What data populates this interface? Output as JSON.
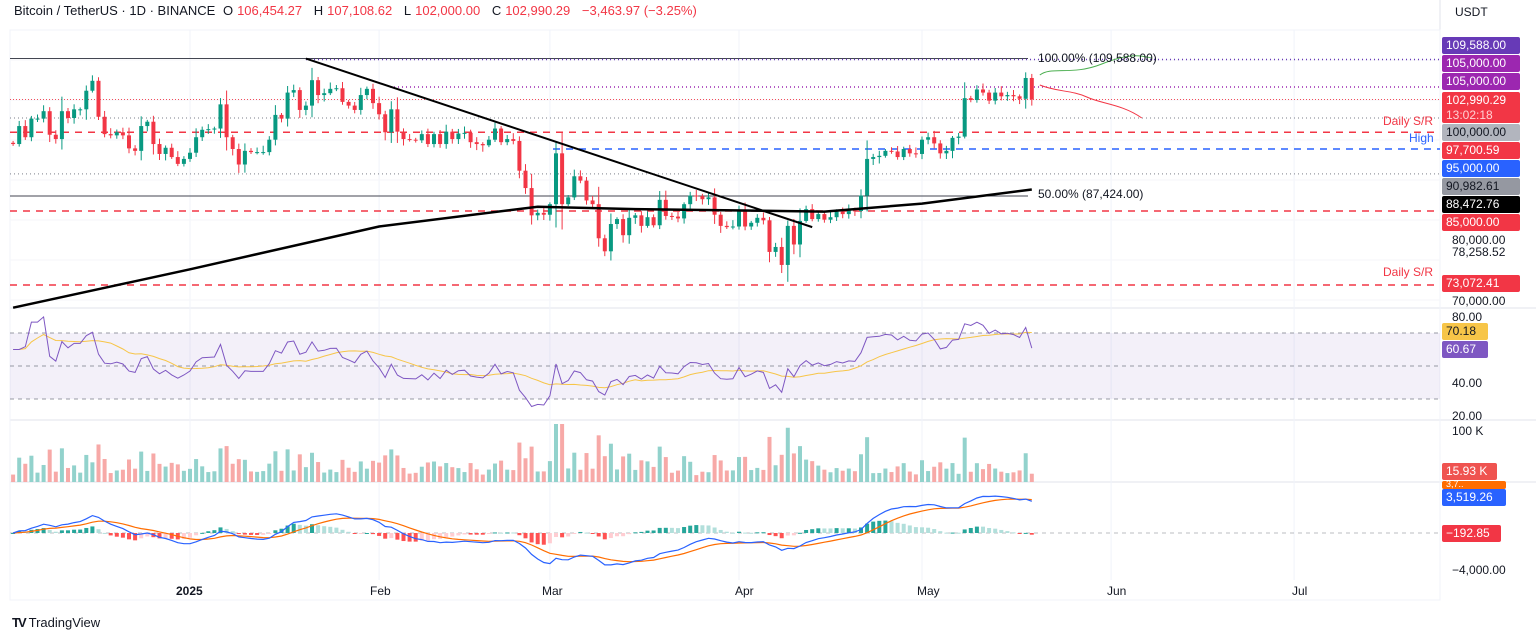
{
  "header": {
    "symbol": "Bitcoin / TetherUS · 1D · BINANCE",
    "open_label": "O",
    "open": "106,454.27",
    "high_label": "H",
    "high": "107,108.62",
    "low_label": "L",
    "low": "102,000.00",
    "close_label": "C",
    "close": "102,990.29",
    "change": "−3,463.97 (−3.25%)"
  },
  "currency": "USDT",
  "branding": "TradingView",
  "colors": {
    "up": "#089981",
    "down": "#f23645",
    "rsi": "#7e57c2",
    "rsi_ma": "#f7c548",
    "macd": "#2962ff",
    "signal": "#ff6d00",
    "support": "#f23645",
    "high": "#2962ff"
  },
  "price_labels": [
    {
      "text": "109,588.00",
      "color": "#673ab7"
    },
    {
      "text": "105,000.00",
      "color": "#9c27b0"
    },
    {
      "text": "105,000.00",
      "color": "#9c27b0"
    },
    {
      "text": "102,990.29",
      "color": "#f23645"
    },
    {
      "text": "13:02:18",
      "color": "#f23645"
    },
    {
      "text": "100,000.00",
      "color": "#b2b5be"
    },
    {
      "text": "97,700.59",
      "color": "#f23645"
    },
    {
      "text": "95,000.00",
      "color": "#2962ff"
    },
    {
      "text": "90,982.61",
      "color": "#9598a1"
    },
    {
      "text": "88,472.76",
      "color": "#000000"
    },
    {
      "text": "85,000.00",
      "color": "#f23645"
    },
    {
      "text": "73,072.41",
      "color": "#f23645"
    }
  ],
  "price_axis_ticks": [
    "80,000.00",
    "78,258.52",
    "70,000.00"
  ],
  "rsi_axis": {
    "ticks": [
      "80.00",
      "40.00",
      "20.00"
    ],
    "rsi_ma_value": "70.18",
    "rsi_value": "60.67"
  },
  "volume_axis": {
    "tick": "100 K",
    "value": "15.93 K"
  },
  "macd_axis": {
    "signal_value": "3,7..",
    "macd_value": "3,519.26",
    "hist_value": "−192.85",
    "tick": "−4,000.00"
  },
  "annotations": {
    "fib_100": "100.00% (109,588.00)",
    "fib_50": "50.00% (87,424.00)",
    "daily_sr_upper": "Daily S/R",
    "high": "High",
    "daily_sr_lower": "Daily S/R"
  },
  "chart_data": {
    "type": "candlestick",
    "title": "Bitcoin / TetherUS · 1D · BINANCE",
    "start_date": "2024-12-03",
    "end_date": "2025-05-19",
    "first_open": 96000,
    "closes": [
      95800,
      98700,
      96900,
      99900,
      99900,
      101100,
      97300,
      96600,
      101100,
      100000,
      101400,
      101400,
      104400,
      106000,
      100200,
      97400,
      97200,
      97700,
      97200,
      95100,
      94700,
      98700,
      99400,
      95800,
      94200,
      95200,
      93700,
      92600,
      93400,
      94400,
      96900,
      98100,
      98200,
      98300,
      102200,
      96900,
      95000,
      92500,
      94700,
      94500,
      94500,
      94500,
      96500,
      100500,
      99900,
      104100,
      104500,
      101300,
      102000,
      106100,
      103700,
      104000,
      104700,
      104800,
      102600,
      102000,
      101300,
      103700,
      104700,
      102400,
      100600,
      97700,
      101400,
      97800,
      96600,
      96500,
      96400,
      97400,
      95800,
      97400,
      95800,
      97800,
      96600,
      97500,
      97600,
      96100,
      95800,
      95600,
      96500,
      98300,
      96100,
      96600,
      96300,
      91500,
      88700,
      84300,
      84700,
      84400,
      86100,
      94300,
      86100,
      87200,
      90600,
      89900,
      86700,
      86100,
      80600,
      78500,
      82900,
      83700,
      81100,
      83900,
      84300,
      82600,
      84000,
      82700,
      86800,
      84200,
      84100,
      83800,
      86100,
      87500,
      87400,
      86900,
      87200,
      84400,
      82600,
      82400,
      82500,
      85200,
      82500,
      83100,
      83900,
      83500,
      78400,
      79200,
      76300,
      82600,
      79600,
      83400,
      85300,
      83700,
      84500,
      83600,
      84000,
      84900,
      84500,
      85100,
      85000,
      87500,
      93400,
      93700,
      93900,
      94700,
      94600,
      93700,
      95000,
      94300,
      94200,
      96500,
      96900,
      95900,
      94300,
      94700,
      96800,
      97000,
      103200,
      102900,
      104600,
      104100,
      102800,
      104100,
      103500,
      103700,
      103500,
      103100,
      106454.27,
      102990.29
    ],
    "last_candle": {
      "open": 106454.27,
      "high": 107108.62,
      "low": 102000.0,
      "close": 102990.29
    },
    "ma_200": [
      {
        "date": "2024-12-03",
        "value": 69400
      },
      {
        "date": "2025-01-01",
        "value": 75600
      },
      {
        "date": "2025-02-01",
        "value": 82500
      },
      {
        "date": "2025-02-27",
        "value": 85700
      },
      {
        "date": "2025-03-15",
        "value": 85300
      },
      {
        "date": "2025-04-15",
        "value": 84900
      },
      {
        "date": "2025-05-01",
        "value": 86200
      },
      {
        "date": "2025-05-19",
        "value": 88472.76
      }
    ],
    "trendline": [
      {
        "date": "2025-01-20",
        "value": 109588
      },
      {
        "date": "2025-04-13",
        "value": 82400
      }
    ],
    "horizontal_levels": {
      "fib_100": 109588,
      "resistance_dotted": 105000,
      "round_100k": 100000,
      "daily_sr_upper": 97700.59,
      "high": 95000,
      "dotted_90982": 90982.61,
      "fib_50": 87424,
      "support_85k": 85000,
      "daily_sr_lower": 73072.41
    },
    "x_ticks": [
      "2025",
      "Feb",
      "Mar",
      "Apr",
      "May",
      "Jun",
      "Jul"
    ],
    "yaxis": "right",
    "ylim": [
      65000,
      112000
    ],
    "panes": [
      "price",
      "rsi",
      "volume",
      "macd"
    ]
  }
}
